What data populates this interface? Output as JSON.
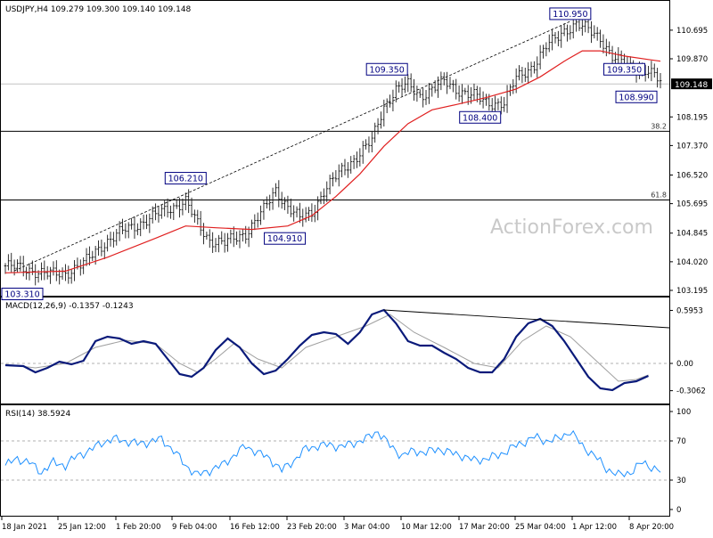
{
  "main_header": "USDJPY,H4  109.279 109.300 109.140 109.148",
  "watermark": "ActionForex.com",
  "colors": {
    "candles": "#1a1a1a",
    "ma": "#e02020",
    "label_border": "#000080",
    "label_text": "#000080",
    "macd_line": "#0a1a7a",
    "signal_line": "#a0a0a0",
    "rsi_line": "#1e90ff",
    "trend_line": "#000000",
    "current_price_bg": "#000000",
    "watermark": "#c9c9c9"
  },
  "chart_data": [
    {
      "type": "candlestick",
      "title": "USDJPY,H4",
      "ohlc_header": {
        "open": 109.279,
        "high": 109.3,
        "low": 109.14,
        "close": 109.148
      },
      "y_ticks": [
        "110.695",
        "109.870",
        "109.148",
        "108.195",
        "107.370",
        "106.520",
        "105.695",
        "104.845",
        "104.020",
        "103.195"
      ],
      "ylim": [
        103.195,
        111.0
      ],
      "current_price": "109.148",
      "x_ticks": [
        "18 Jan 2021",
        "25 Jan 12:00",
        "1 Feb 20:00",
        "9 Feb 04:00",
        "16 Feb 12:00",
        "23 Feb 20:00",
        "3 Mar 04:00",
        "10 Mar 12:00",
        "17 Mar 20:00",
        "25 Mar 04:00",
        "1 Apr 12:00",
        "8 Apr 20:00"
      ],
      "swing_labels": [
        {
          "text": "103.310",
          "value": 103.31,
          "bar": 3
        },
        {
          "text": "106.210",
          "value": 106.21,
          "bar": 60
        },
        {
          "text": "104.910",
          "value": 104.91,
          "bar": 93
        },
        {
          "text": "109.350",
          "value": 109.35,
          "bar": 127
        },
        {
          "text": "108.400",
          "value": 108.4,
          "bar": 158
        },
        {
          "text": "110.950",
          "value": 110.95,
          "bar": 188
        },
        {
          "text": "109.350",
          "value": 109.35,
          "bar": 206
        },
        {
          "text": "108.990",
          "value": 108.99,
          "bar": 210
        }
      ],
      "fib_levels": [
        {
          "label": "38.2",
          "value": 107.78
        },
        {
          "label": "61.8",
          "value": 105.8
        }
      ],
      "close_path": [
        [
          0,
          103.9
        ],
        [
          8,
          103.8
        ],
        [
          14,
          103.65
        ],
        [
          20,
          103.7
        ],
        [
          26,
          103.95
        ],
        [
          32,
          104.5
        ],
        [
          40,
          104.95
        ],
        [
          48,
          105.25
        ],
        [
          54,
          105.55
        ],
        [
          60,
          105.75
        ],
        [
          64,
          105.1
        ],
        [
          68,
          104.65
        ],
        [
          73,
          104.55
        ],
        [
          80,
          104.85
        ],
        [
          86,
          105.5
        ],
        [
          90,
          106.1
        ],
        [
          94,
          105.6
        ],
        [
          98,
          105.25
        ],
        [
          102,
          105.45
        ],
        [
          106,
          106.05
        ],
        [
          112,
          106.65
        ],
        [
          118,
          107.15
        ],
        [
          122,
          107.5
        ],
        [
          126,
          108.5
        ],
        [
          130,
          109.0
        ],
        [
          134,
          109.1
        ],
        [
          138,
          108.8
        ],
        [
          142,
          109.0
        ],
        [
          146,
          109.2
        ],
        [
          150,
          109.0
        ],
        [
          156,
          108.8
        ],
        [
          160,
          108.6
        ],
        [
          166,
          108.6
        ],
        [
          170,
          109.3
        ],
        [
          176,
          109.7
        ],
        [
          180,
          110.2
        ],
        [
          186,
          110.7
        ],
        [
          190,
          110.85
        ],
        [
          194,
          110.7
        ],
        [
          198,
          110.5
        ],
        [
          202,
          109.9
        ],
        [
          206,
          109.7
        ],
        [
          210,
          109.6
        ],
        [
          214,
          109.5
        ],
        [
          218,
          109.2
        ]
      ],
      "ma_path": [
        [
          0,
          103.7
        ],
        [
          20,
          103.75
        ],
        [
          34,
          104.15
        ],
        [
          50,
          104.7
        ],
        [
          60,
          105.05
        ],
        [
          70,
          105.0
        ],
        [
          82,
          104.95
        ],
        [
          94,
          105.05
        ],
        [
          102,
          105.35
        ],
        [
          110,
          105.9
        ],
        [
          118,
          106.55
        ],
        [
          126,
          107.35
        ],
        [
          134,
          108.0
        ],
        [
          142,
          108.4
        ],
        [
          150,
          108.55
        ],
        [
          160,
          108.75
        ],
        [
          170,
          109.0
        ],
        [
          178,
          109.35
        ],
        [
          186,
          109.8
        ],
        [
          192,
          110.1
        ],
        [
          198,
          110.1
        ],
        [
          206,
          109.95
        ],
        [
          214,
          109.85
        ],
        [
          218,
          109.8
        ]
      ]
    },
    {
      "type": "line",
      "title": "MACD(12,26,9) -0.1357 -0.1243",
      "y_ticks": [
        "0.5953",
        "0.00",
        "-0.3062"
      ],
      "ylim": [
        -0.42,
        0.68
      ],
      "macd_path": [
        [
          0,
          -0.02
        ],
        [
          6,
          -0.03
        ],
        [
          10,
          -0.1
        ],
        [
          14,
          -0.05
        ],
        [
          18,
          0.02
        ],
        [
          22,
          -0.01
        ],
        [
          26,
          0.03
        ],
        [
          30,
          0.25
        ],
        [
          34,
          0.3
        ],
        [
          38,
          0.28
        ],
        [
          42,
          0.22
        ],
        [
          46,
          0.25
        ],
        [
          50,
          0.22
        ],
        [
          54,
          0.05
        ],
        [
          58,
          -0.12
        ],
        [
          62,
          -0.15
        ],
        [
          66,
          -0.05
        ],
        [
          70,
          0.15
        ],
        [
          74,
          0.28
        ],
        [
          78,
          0.18
        ],
        [
          82,
          0.0
        ],
        [
          86,
          -0.12
        ],
        [
          90,
          -0.08
        ],
        [
          94,
          0.05
        ],
        [
          98,
          0.2
        ],
        [
          102,
          0.32
        ],
        [
          106,
          0.35
        ],
        [
          110,
          0.33
        ],
        [
          114,
          0.22
        ],
        [
          118,
          0.35
        ],
        [
          122,
          0.55
        ],
        [
          126,
          0.6
        ],
        [
          130,
          0.45
        ],
        [
          134,
          0.25
        ],
        [
          138,
          0.2
        ],
        [
          142,
          0.2
        ],
        [
          146,
          0.12
        ],
        [
          150,
          0.05
        ],
        [
          154,
          -0.05
        ],
        [
          158,
          -0.1
        ],
        [
          162,
          -0.1
        ],
        [
          166,
          0.05
        ],
        [
          170,
          0.3
        ],
        [
          174,
          0.45
        ],
        [
          178,
          0.5
        ],
        [
          182,
          0.42
        ],
        [
          186,
          0.25
        ],
        [
          190,
          0.05
        ],
        [
          194,
          -0.15
        ],
        [
          198,
          -0.28
        ],
        [
          202,
          -0.3
        ],
        [
          206,
          -0.22
        ],
        [
          210,
          -0.2
        ],
        [
          214,
          -0.14
        ]
      ],
      "signal_path": [
        [
          0,
          -0.01
        ],
        [
          10,
          -0.05
        ],
        [
          20,
          0.0
        ],
        [
          30,
          0.18
        ],
        [
          40,
          0.26
        ],
        [
          50,
          0.22
        ],
        [
          58,
          0.0
        ],
        [
          64,
          -0.1
        ],
        [
          70,
          0.05
        ],
        [
          76,
          0.22
        ],
        [
          84,
          0.05
        ],
        [
          92,
          -0.05
        ],
        [
          100,
          0.18
        ],
        [
          110,
          0.3
        ],
        [
          120,
          0.42
        ],
        [
          128,
          0.55
        ],
        [
          136,
          0.35
        ],
        [
          146,
          0.18
        ],
        [
          156,
          0.0
        ],
        [
          164,
          -0.05
        ],
        [
          172,
          0.25
        ],
        [
          180,
          0.42
        ],
        [
          188,
          0.3
        ],
        [
          196,
          0.05
        ],
        [
          204,
          -0.2
        ],
        [
          210,
          -0.18
        ],
        [
          214,
          -0.13
        ]
      ],
      "trend_line": {
        "from": [
          126,
          0.6
        ],
        "to": [
          218,
          0.4
        ]
      }
    },
    {
      "type": "line",
      "title": "RSI(14) 38.5924",
      "y_ticks": [
        "100",
        "70",
        "30",
        "0"
      ],
      "ylim": [
        0,
        100
      ],
      "levels": [
        70,
        30
      ],
      "rsi_path": [
        [
          0,
          45
        ],
        [
          4,
          52
        ],
        [
          8,
          48
        ],
        [
          12,
          38
        ],
        [
          16,
          48
        ],
        [
          20,
          45
        ],
        [
          24,
          55
        ],
        [
          28,
          60
        ],
        [
          32,
          68
        ],
        [
          36,
          72
        ],
        [
          40,
          70
        ],
        [
          44,
          67
        ],
        [
          48,
          69
        ],
        [
          52,
          72
        ],
        [
          56,
          60
        ],
        [
          60,
          45
        ],
        [
          64,
          35
        ],
        [
          68,
          40
        ],
        [
          72,
          45
        ],
        [
          76,
          55
        ],
        [
          80,
          65
        ],
        [
          84,
          58
        ],
        [
          88,
          52
        ],
        [
          92,
          40
        ],
        [
          96,
          50
        ],
        [
          100,
          62
        ],
        [
          104,
          65
        ],
        [
          108,
          66
        ],
        [
          112,
          64
        ],
        [
          116,
          68
        ],
        [
          120,
          72
        ],
        [
          124,
          80
        ],
        [
          128,
          65
        ],
        [
          132,
          55
        ],
        [
          136,
          60
        ],
        [
          140,
          58
        ],
        [
          144,
          62
        ],
        [
          148,
          58
        ],
        [
          152,
          55
        ],
        [
          156,
          50
        ],
        [
          160,
          52
        ],
        [
          164,
          55
        ],
        [
          168,
          62
        ],
        [
          172,
          68
        ],
        [
          176,
          74
        ],
        [
          180,
          70
        ],
        [
          184,
          72
        ],
        [
          188,
          80
        ],
        [
          192,
          65
        ],
        [
          196,
          55
        ],
        [
          200,
          42
        ],
        [
          204,
          35
        ],
        [
          208,
          38
        ],
        [
          212,
          48
        ],
        [
          216,
          42
        ],
        [
          218,
          38.5924
        ]
      ]
    }
  ]
}
